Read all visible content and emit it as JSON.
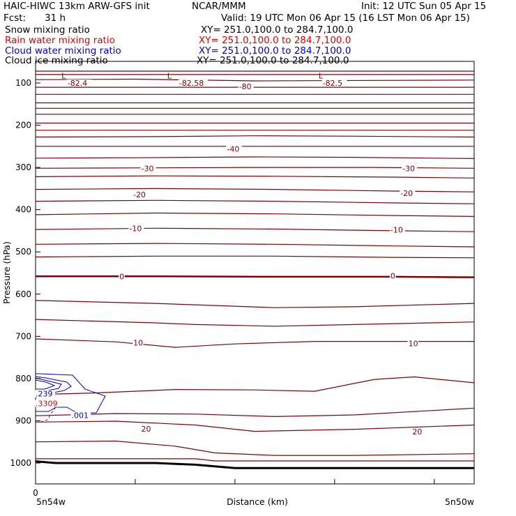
{
  "header": {
    "model_title": "HAIC-HIWC 13km ARW-GFS init",
    "org": "NCAR/MMM",
    "init": "Init: 12 UTC Sun 05 Apr 15",
    "fcst_label": "Fcst:",
    "fcst_value": "31 h",
    "valid": "Valid: 19 UTC Mon 06 Apr 15 (16 LST Mon 06 Apr 15)"
  },
  "fields": [
    {
      "label": "Snow mixing ratio",
      "xy": "XY= 251.0,100.0 to 284.7,100.0",
      "color": "#000000"
    },
    {
      "label": "Rain water mixing ratio",
      "xy": "XY= 251.0,100.0 to 284.7,100.0",
      "color": "#dd0000"
    },
    {
      "label": "Cloud water mixing ratio",
      "xy": "XY= 251.0,100.0 to 284.7,100.0",
      "color": "#0000cc"
    },
    {
      "label": "Cloud ice mixing ratio",
      "xy": "XY= 251.0,100.0 to 284.7,100.0",
      "color": "#000000"
    }
  ],
  "chart_data": {
    "type": "line",
    "title": "",
    "xlabel": "Distance (km)",
    "ylabel": "Pressure (hPa)",
    "xlim": [
      0,
      22
    ],
    "ylim": [
      1050,
      50
    ],
    "y_scale": "linear, inverted",
    "y_ticks": [
      100,
      200,
      300,
      400,
      500,
      600,
      700,
      800,
      900,
      1000
    ],
    "x_tick_labels": [
      {
        "x": 0,
        "label": "0"
      }
    ],
    "x_end_labels": {
      "left": "5n54w",
      "right": "5n50w"
    },
    "temperature_contour_color": "#800000",
    "cloud_contour_color": "#0000cc",
    "rain_contour_color": "#dd0000",
    "series": [
      {
        "kind": "temp",
        "x": [
          0,
          22
        ],
        "y": [
          72,
          72
        ]
      },
      {
        "kind": "temp",
        "x": [
          0,
          22
        ],
        "y": [
          80,
          80
        ]
      },
      {
        "kind": "temp",
        "x": [
          0,
          5,
          11,
          22
        ],
        "y": [
          92,
          91,
          95,
          93
        ]
      },
      {
        "kind": "temp",
        "x": [
          0,
          22
        ],
        "y": [
          110,
          110
        ]
      },
      {
        "kind": "temp",
        "x": [
          0,
          22
        ],
        "y": [
          127,
          127
        ]
      },
      {
        "kind": "temp",
        "x": [
          0,
          22
        ],
        "y": [
          147,
          147
        ]
      },
      {
        "kind": "temp",
        "x": [
          0,
          22
        ],
        "y": [
          160,
          160
        ]
      },
      {
        "kind": "temp",
        "x": [
          0,
          22
        ],
        "y": [
          174,
          174
        ]
      },
      {
        "kind": "temp",
        "x": [
          0,
          22
        ],
        "y": [
          195,
          195
        ]
      },
      {
        "kind": "temp",
        "x": [
          0,
          22
        ],
        "y": [
          212,
          212
        ]
      },
      {
        "kind": "temp",
        "x": [
          0,
          6,
          11,
          16,
          22
        ],
        "y": [
          228,
          227,
          225,
          226,
          228
        ]
      },
      {
        "kind": "temp",
        "x": [
          0,
          22
        ],
        "y": [
          250,
          250
        ]
      },
      {
        "kind": "temp",
        "x": [
          0,
          5,
          11,
          16,
          22
        ],
        "y": [
          278,
          277,
          275,
          276,
          279
        ]
      },
      {
        "kind": "temp",
        "x": [
          0,
          6,
          11,
          17,
          22
        ],
        "y": [
          302,
          301,
          300,
          300,
          302
        ]
      },
      {
        "kind": "temp",
        "x": [
          0,
          6,
          12,
          18,
          22
        ],
        "y": [
          322,
          320,
          321,
          323,
          325
        ]
      },
      {
        "kind": "temp",
        "x": [
          0,
          6,
          12,
          18,
          22
        ],
        "y": [
          352,
          350,
          352,
          356,
          358
        ]
      },
      {
        "kind": "temp",
        "x": [
          0,
          6,
          12,
          18,
          22
        ],
        "y": [
          380,
          378,
          380,
          384,
          386
        ]
      },
      {
        "kind": "temp",
        "x": [
          0,
          6,
          12,
          18,
          22
        ],
        "y": [
          412,
          408,
          410,
          414,
          416
        ]
      },
      {
        "kind": "temp",
        "x": [
          0,
          6,
          12,
          18,
          22
        ],
        "y": [
          447,
          444,
          446,
          450,
          452
        ]
      },
      {
        "kind": "temp",
        "x": [
          0,
          6,
          12,
          18,
          22
        ],
        "y": [
          482,
          480,
          482,
          486,
          488
        ]
      },
      {
        "kind": "temp",
        "x": [
          0,
          6,
          12,
          18,
          22
        ],
        "y": [
          512,
          510,
          510,
          513,
          514
        ]
      },
      {
        "kind": "temp",
        "x": [
          0,
          6,
          12,
          18,
          22
        ],
        "y": [
          558,
          558,
          559,
          559,
          560
        ],
        "bold": true
      },
      {
        "kind": "temp",
        "x": [
          0,
          6,
          12,
          16,
          22
        ],
        "y": [
          615,
          622,
          632,
          630,
          622
        ]
      },
      {
        "kind": "temp",
        "x": [
          0,
          6,
          8,
          12,
          16,
          22
        ],
        "y": [
          660,
          668,
          672,
          676,
          672,
          666
        ]
      },
      {
        "kind": "temp",
        "x": [
          0,
          4,
          7,
          10,
          14,
          22
        ],
        "y": [
          706,
          713,
          726,
          718,
          712,
          712
        ]
      },
      {
        "kind": "temp",
        "x": [
          0,
          3,
          7,
          11,
          14,
          17,
          19,
          22
        ],
        "y": [
          838,
          834,
          826,
          827,
          830,
          802,
          796,
          810
        ]
      },
      {
        "kind": "temp",
        "x": [
          0,
          4,
          8,
          12,
          16,
          22
        ],
        "y": [
          888,
          883,
          884,
          890,
          886,
          870
        ]
      },
      {
        "kind": "temp",
        "x": [
          0,
          4,
          8,
          11,
          16,
          22
        ],
        "y": [
          903,
          901,
          910,
          925,
          920,
          910
        ]
      },
      {
        "kind": "temp",
        "x": [
          0,
          4,
          7,
          9,
          12,
          16,
          22
        ],
        "y": [
          950,
          948,
          960,
          976,
          982,
          982,
          978
        ]
      },
      {
        "kind": "temp",
        "x": [
          0,
          5,
          8,
          9,
          12,
          22
        ],
        "y": [
          990,
          990,
          990,
          995,
          995,
          995
        ]
      },
      {
        "kind": "ground",
        "x": [
          0,
          1,
          6,
          8,
          10,
          22
        ],
        "y": [
          996,
          1000,
          1000,
          1004,
          1012,
          1012
        ]
      }
    ],
    "annotations": [
      {
        "text": "L",
        "x": 1.3,
        "y": 83,
        "color": "#800000"
      },
      {
        "text": "-82.4",
        "x": 1.6,
        "y": 100,
        "color": "#800000"
      },
      {
        "text": "L",
        "x": 6.6,
        "y": 83,
        "color": "#800000"
      },
      {
        "text": "-82.58",
        "x": 7.2,
        "y": 100,
        "color": "#800000"
      },
      {
        "text": "-80",
        "x": 10.2,
        "y": 108,
        "color": "#800000"
      },
      {
        "text": "L",
        "x": 14.2,
        "y": 83,
        "color": "#800000"
      },
      {
        "text": "-82.5",
        "x": 14.4,
        "y": 100,
        "color": "#800000"
      },
      {
        "text": "-40",
        "x": 9.6,
        "y": 256,
        "color": "#800000"
      },
      {
        "text": "-30",
        "x": 5.3,
        "y": 302,
        "color": "#800000"
      },
      {
        "text": "-30",
        "x": 18.4,
        "y": 302,
        "color": "#800000"
      },
      {
        "text": "-20",
        "x": 4.9,
        "y": 364,
        "color": "#800000"
      },
      {
        "text": "-20",
        "x": 18.3,
        "y": 361,
        "color": "#800000"
      },
      {
        "text": "-10",
        "x": 4.7,
        "y": 444,
        "color": "#800000"
      },
      {
        "text": "-10",
        "x": 17.8,
        "y": 448,
        "color": "#800000"
      },
      {
        "text": "0",
        "x": 4.2,
        "y": 558,
        "color": "#800000"
      },
      {
        "text": "0",
        "x": 17.8,
        "y": 557,
        "color": "#800000"
      },
      {
        "text": "10",
        "x": 4.9,
        "y": 715,
        "color": "#800000"
      },
      {
        "text": "10",
        "x": 18.7,
        "y": 717,
        "color": "#800000"
      },
      {
        "text": "20",
        "x": 5.3,
        "y": 919,
        "color": "#800000"
      },
      {
        "text": "20",
        "x": 18.9,
        "y": 926,
        "color": "#800000"
      },
      {
        "text": ".239",
        "x": 0.0,
        "y": 836,
        "color": "#0000cc"
      },
      {
        "text": ".3309",
        "x": 0.0,
        "y": 859,
        "color": "#dd0000"
      },
      {
        "text": ".001",
        "x": 1.8,
        "y": 887,
        "color": "#0000cc"
      }
    ]
  }
}
